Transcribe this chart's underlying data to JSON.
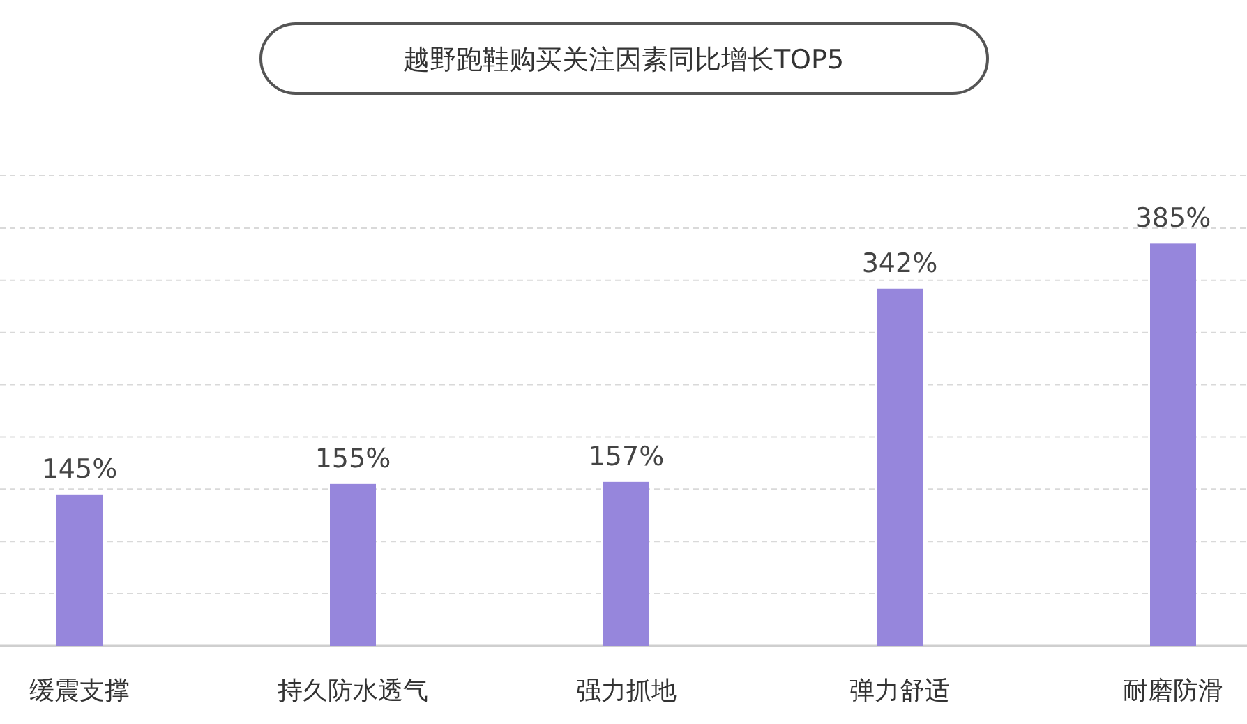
{
  "chart_data": {
    "type": "bar",
    "title": "越野跑鞋购买关注因素同比增长TOP5",
    "categories": [
      "缓震支撑",
      "持久防水透气",
      "强力抓地",
      "弹力舒适",
      "耐磨防滑"
    ],
    "values": [
      145,
      155,
      157,
      342,
      385
    ],
    "color": "#9686dc",
    "value_labels": [
      "145%",
      "155%",
      "157%",
      "342%",
      "385%"
    ],
    "ylim": [
      0,
      450
    ],
    "yticks": [
      {
        "value": 0,
        "label": null
      },
      {
        "value": 50,
        "label": null
      },
      {
        "value": 100,
        "label": null
      },
      {
        "value": 150,
        "label": null
      },
      {
        "value": 200,
        "label": null
      },
      {
        "value": 250,
        "label": null
      },
      {
        "value": 300,
        "label": null
      },
      {
        "value": 350,
        "label": null
      },
      {
        "value": 400,
        "label": null
      },
      {
        "value": 450,
        "label": null
      }
    ],
    "grid": "y"
  }
}
